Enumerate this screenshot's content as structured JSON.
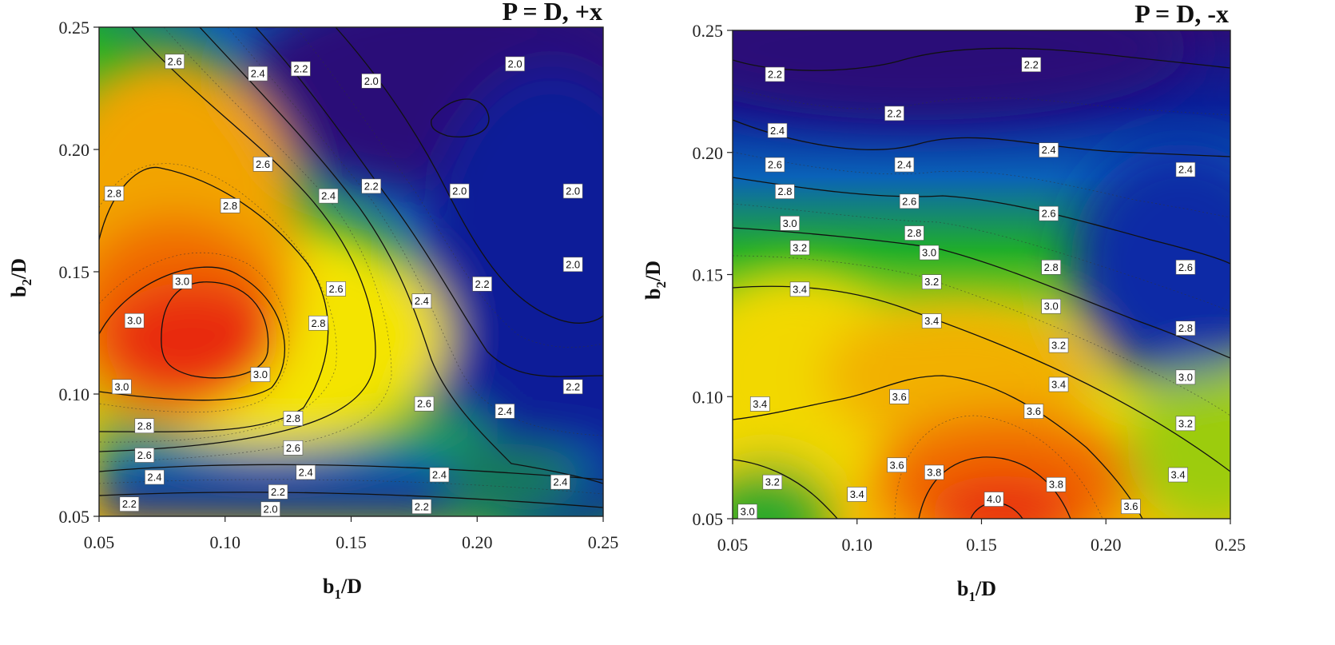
{
  "chart_data": [
    {
      "type": "heatmap",
      "subtype": "filled-contour",
      "title": "P = D, +x",
      "xlabel": {
        "main": "b",
        "sub": "1",
        "tail": "/D"
      },
      "ylabel": {
        "main": "b",
        "sub": "2",
        "tail": "/D"
      },
      "xlim": [
        0.05,
        0.25
      ],
      "ylim": [
        0.05,
        0.25
      ],
      "xticks": [
        "0.05",
        "0.10",
        "0.15",
        "0.20",
        "0.25"
      ],
      "yticks": [
        "0.05",
        "0.10",
        "0.15",
        "0.20",
        "0.25"
      ],
      "value_range": [
        1.9,
        3.1
      ],
      "peaks": [
        {
          "x": 0.088,
          "y": 0.12,
          "value": 3.1
        },
        {
          "x": 0.195,
          "y": 0.215,
          "value": 1.9
        },
        {
          "x": 0.14,
          "y": 0.05,
          "value": 1.9
        }
      ],
      "contour_labels": [
        {
          "x": 0.08,
          "y": 0.236,
          "text": "2.6"
        },
        {
          "x": 0.113,
          "y": 0.231,
          "text": "2.4"
        },
        {
          "x": 0.13,
          "y": 0.233,
          "text": "2.2"
        },
        {
          "x": 0.158,
          "y": 0.228,
          "text": "2.0"
        },
        {
          "x": 0.215,
          "y": 0.235,
          "text": "2.0"
        },
        {
          "x": 0.115,
          "y": 0.194,
          "text": "2.6"
        },
        {
          "x": 0.158,
          "y": 0.185,
          "text": "2.2"
        },
        {
          "x": 0.193,
          "y": 0.183,
          "text": "2.0"
        },
        {
          "x": 0.238,
          "y": 0.183,
          "text": "2.0"
        },
        {
          "x": 0.056,
          "y": 0.182,
          "text": "2.8"
        },
        {
          "x": 0.141,
          "y": 0.181,
          "text": "2.4"
        },
        {
          "x": 0.102,
          "y": 0.177,
          "text": "2.8"
        },
        {
          "x": 0.238,
          "y": 0.153,
          "text": "2.0"
        },
        {
          "x": 0.083,
          "y": 0.146,
          "text": "3.0"
        },
        {
          "x": 0.202,
          "y": 0.145,
          "text": "2.2"
        },
        {
          "x": 0.144,
          "y": 0.143,
          "text": "2.6"
        },
        {
          "x": 0.178,
          "y": 0.138,
          "text": "2.4"
        },
        {
          "x": 0.064,
          "y": 0.13,
          "text": "3.0"
        },
        {
          "x": 0.137,
          "y": 0.129,
          "text": "2.8"
        },
        {
          "x": 0.114,
          "y": 0.108,
          "text": "3.0"
        },
        {
          "x": 0.059,
          "y": 0.103,
          "text": "3.0"
        },
        {
          "x": 0.238,
          "y": 0.103,
          "text": "2.2"
        },
        {
          "x": 0.179,
          "y": 0.096,
          "text": "2.6"
        },
        {
          "x": 0.211,
          "y": 0.093,
          "text": "2.4"
        },
        {
          "x": 0.127,
          "y": 0.09,
          "text": "2.8"
        },
        {
          "x": 0.068,
          "y": 0.087,
          "text": "2.8"
        },
        {
          "x": 0.127,
          "y": 0.078,
          "text": "2.6"
        },
        {
          "x": 0.068,
          "y": 0.075,
          "text": "2.6"
        },
        {
          "x": 0.132,
          "y": 0.068,
          "text": "2.4"
        },
        {
          "x": 0.185,
          "y": 0.067,
          "text": "2.4"
        },
        {
          "x": 0.072,
          "y": 0.066,
          "text": "2.4"
        },
        {
          "x": 0.233,
          "y": 0.064,
          "text": "2.4"
        },
        {
          "x": 0.121,
          "y": 0.06,
          "text": "2.2"
        },
        {
          "x": 0.062,
          "y": 0.055,
          "text": "2.2"
        },
        {
          "x": 0.178,
          "y": 0.054,
          "text": "2.2"
        },
        {
          "x": 0.118,
          "y": 0.053,
          "text": "2.0"
        }
      ]
    },
    {
      "type": "heatmap",
      "subtype": "filled-contour",
      "title": "P = D, -x",
      "xlabel": {
        "main": "b",
        "sub": "1",
        "tail": "/D"
      },
      "ylabel": {
        "main": "b",
        "sub": "2",
        "tail": "/D"
      },
      "xlim": [
        0.05,
        0.25
      ],
      "ylim": [
        0.05,
        0.25
      ],
      "xticks": [
        "0.05",
        "0.10",
        "0.15",
        "0.20",
        "0.25"
      ],
      "yticks": [
        "0.05",
        "0.10",
        "0.15",
        "0.20",
        "0.25"
      ],
      "value_range": [
        2.0,
        4.1
      ],
      "peaks": [
        {
          "x": 0.157,
          "y": 0.051,
          "value": 4.1
        },
        {
          "x": 0.11,
          "y": 0.247,
          "value": 2.0
        }
      ],
      "contour_labels": [
        {
          "x": 0.17,
          "y": 0.236,
          "text": "2.2"
        },
        {
          "x": 0.067,
          "y": 0.232,
          "text": "2.2"
        },
        {
          "x": 0.115,
          "y": 0.216,
          "text": "2.2"
        },
        {
          "x": 0.068,
          "y": 0.209,
          "text": "2.4"
        },
        {
          "x": 0.177,
          "y": 0.201,
          "text": "2.4"
        },
        {
          "x": 0.119,
          "y": 0.195,
          "text": "2.4"
        },
        {
          "x": 0.067,
          "y": 0.195,
          "text": "2.6"
        },
        {
          "x": 0.232,
          "y": 0.193,
          "text": "2.4"
        },
        {
          "x": 0.071,
          "y": 0.184,
          "text": "2.8"
        },
        {
          "x": 0.121,
          "y": 0.18,
          "text": "2.6"
        },
        {
          "x": 0.177,
          "y": 0.175,
          "text": "2.6"
        },
        {
          "x": 0.073,
          "y": 0.171,
          "text": "3.0"
        },
        {
          "x": 0.123,
          "y": 0.167,
          "text": "2.8"
        },
        {
          "x": 0.077,
          "y": 0.161,
          "text": "3.2"
        },
        {
          "x": 0.129,
          "y": 0.159,
          "text": "3.0"
        },
        {
          "x": 0.178,
          "y": 0.153,
          "text": "2.8"
        },
        {
          "x": 0.232,
          "y": 0.153,
          "text": "2.6"
        },
        {
          "x": 0.13,
          "y": 0.147,
          "text": "3.2"
        },
        {
          "x": 0.077,
          "y": 0.144,
          "text": "3.4"
        },
        {
          "x": 0.178,
          "y": 0.137,
          "text": "3.0"
        },
        {
          "x": 0.13,
          "y": 0.131,
          "text": "3.4"
        },
        {
          "x": 0.232,
          "y": 0.128,
          "text": "2.8"
        },
        {
          "x": 0.181,
          "y": 0.121,
          "text": "3.2"
        },
        {
          "x": 0.232,
          "y": 0.108,
          "text": "3.0"
        },
        {
          "x": 0.181,
          "y": 0.105,
          "text": "3.4"
        },
        {
          "x": 0.117,
          "y": 0.1,
          "text": "3.6"
        },
        {
          "x": 0.061,
          "y": 0.097,
          "text": "3.4"
        },
        {
          "x": 0.171,
          "y": 0.094,
          "text": "3.6"
        },
        {
          "x": 0.232,
          "y": 0.089,
          "text": "3.2"
        },
        {
          "x": 0.116,
          "y": 0.072,
          "text": "3.6"
        },
        {
          "x": 0.131,
          "y": 0.069,
          "text": "3.8"
        },
        {
          "x": 0.229,
          "y": 0.068,
          "text": "3.4"
        },
        {
          "x": 0.066,
          "y": 0.065,
          "text": "3.2"
        },
        {
          "x": 0.18,
          "y": 0.064,
          "text": "3.8"
        },
        {
          "x": 0.1,
          "y": 0.06,
          "text": "3.4"
        },
        {
          "x": 0.155,
          "y": 0.058,
          "text": "4.0"
        },
        {
          "x": 0.21,
          "y": 0.055,
          "text": "3.6"
        },
        {
          "x": 0.056,
          "y": 0.053,
          "text": "3.0"
        }
      ]
    }
  ]
}
